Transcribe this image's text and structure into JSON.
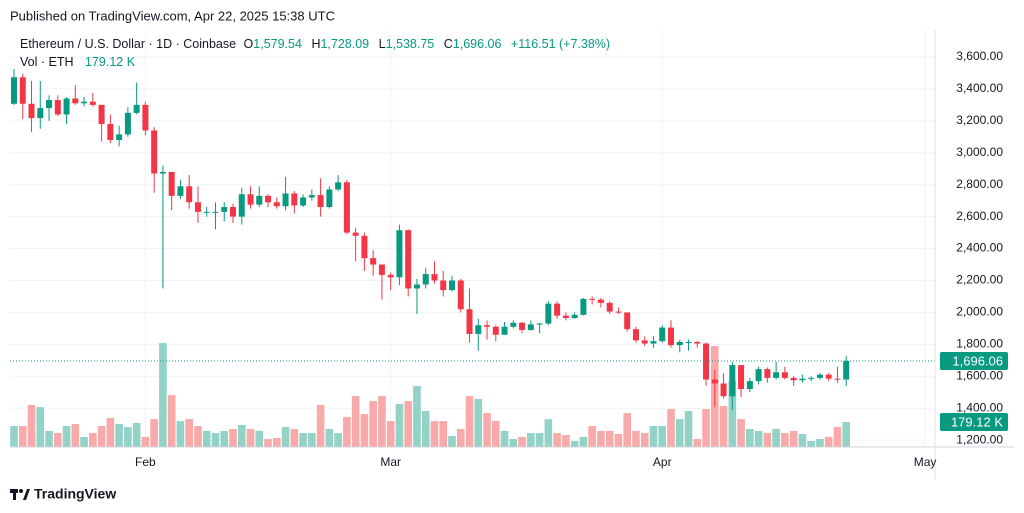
{
  "header": {
    "published": "Published on TradingView.com, Apr 22, 2025 15:38 UTC"
  },
  "footer": {
    "brand": "TradingView"
  },
  "chart_data": {
    "type": "candlestick",
    "categories": [
      null,
      null,
      null,
      null,
      null,
      null,
      null,
      null,
      null,
      null,
      null,
      null,
      null,
      null,
      null,
      "Feb",
      null,
      null,
      null,
      null,
      null,
      null,
      null,
      null,
      null,
      null,
      null,
      null,
      null,
      null,
      null,
      null,
      null,
      null,
      null,
      null,
      null,
      null,
      null,
      null,
      null,
      null,
      null,
      "Mar",
      null,
      null,
      null,
      null,
      null,
      null,
      null,
      null,
      null,
      null,
      null,
      null,
      null,
      null,
      null,
      null,
      null,
      null,
      null,
      null,
      null,
      null,
      null,
      null,
      null,
      null,
      null,
      null,
      null,
      null,
      "Apr",
      null,
      null,
      null,
      null,
      null,
      null,
      null,
      null,
      null,
      null,
      null,
      null,
      null,
      null,
      null,
      null,
      null,
      null,
      null,
      null,
      null,
      null,
      null,
      null,
      null,
      null,
      null,
      null,
      null,
      "May"
    ],
    "series": [
      {
        "name": "Ethereum / U.S. Dollar · 1D · Coinbase",
        "up_color": "#089981",
        "down_color": "#f23645",
        "open": [
          3307,
          3473,
          3307,
          3217,
          3280,
          3330,
          3240,
          3340,
          3310,
          3320,
          3300,
          3180,
          3080,
          3115,
          3250,
          3300,
          3140,
          2870,
          2880,
          2730,
          2790,
          2690,
          2630,
          2630,
          2630,
          2660,
          2600,
          2740,
          2675,
          2730,
          2690,
          2665,
          2745,
          2670,
          2720,
          2735,
          2660,
          2770,
          2815,
          2500,
          2480,
          2340,
          2300,
          2235,
          2220,
          2515,
          2150,
          2175,
          2240,
          2200,
          2140,
          2200,
          2020,
          1865,
          1920,
          1910,
          1860,
          1910,
          1935,
          1890,
          1925,
          1930,
          2055,
          1980,
          1965,
          1985,
          2085,
          2080,
          2060,
          2005,
          2000,
          1895,
          1825,
          1805,
          1820,
          1905,
          1795,
          1815,
          1815,
          1805,
          1580,
          1555,
          1475,
          1670,
          1520,
          1570,
          1645,
          1590,
          1625,
          1590,
          1575,
          1585,
          1590,
          1610,
          1585,
          1579.54,
          null,
          null,
          null,
          null,
          null,
          null,
          null,
          null,
          null
        ],
        "high": [
          3525,
          3495,
          3450,
          3450,
          3360,
          3360,
          3350,
          3425,
          3350,
          3375,
          3300,
          3240,
          3170,
          3285,
          3440,
          3320,
          3160,
          2920,
          2880,
          2830,
          2860,
          2790,
          2660,
          2690,
          2690,
          2680,
          2780,
          2790,
          2790,
          2740,
          2720,
          2850,
          2760,
          2740,
          2770,
          2840,
          2790,
          2860,
          2830,
          2530,
          2500,
          2390,
          2300,
          2250,
          2550,
          2520,
          2210,
          2280,
          2320,
          2260,
          2230,
          2210,
          2150,
          1960,
          1950,
          1920,
          1940,
          1950,
          1940,
          1950,
          1935,
          2070,
          2070,
          2000,
          2000,
          2090,
          2100,
          2090,
          2070,
          2030,
          2000,
          1910,
          1850,
          1850,
          1920,
          1950,
          1830,
          1830,
          1820,
          1810,
          1640,
          1620,
          1690,
          1670,
          1590,
          1660,
          1655,
          1690,
          1660,
          1600,
          1610,
          1600,
          1620,
          1620,
          1660,
          1728.09,
          null,
          null,
          null,
          null,
          null,
          null,
          null,
          null,
          null
        ],
        "low": [
          3300,
          3210,
          3130,
          3150,
          3200,
          3230,
          3180,
          3300,
          3290,
          3290,
          3070,
          3060,
          3040,
          3100,
          3240,
          3110,
          2750,
          2150,
          2640,
          2710,
          2650,
          2560,
          2600,
          2520,
          2570,
          2560,
          2550,
          2650,
          2660,
          2660,
          2650,
          2640,
          2620,
          2660,
          2700,
          2600,
          2650,
          2760,
          2490,
          2320,
          2260,
          2230,
          2080,
          2140,
          2170,
          2100,
          1990,
          2150,
          2180,
          2100,
          2130,
          2000,
          1810,
          1760,
          1830,
          1820,
          1860,
          1900,
          1870,
          1885,
          1870,
          1920,
          1960,
          1950,
          1960,
          1980,
          2050,
          2030,
          1990,
          1990,
          1880,
          1810,
          1790,
          1780,
          1810,
          1780,
          1750,
          1760,
          1780,
          1540,
          1410,
          1460,
          1390,
          1470,
          1500,
          1550,
          1560,
          1580,
          1580,
          1540,
          1560,
          1570,
          1580,
          1570,
          1560,
          1538.75,
          null,
          null,
          null,
          null,
          null,
          null,
          null,
          null,
          null
        ],
        "close": [
          3473,
          3307,
          3217,
          3280,
          3330,
          3240,
          3340,
          3310,
          3320,
          3300,
          3180,
          3080,
          3115,
          3250,
          3300,
          3140,
          2870,
          2880,
          2730,
          2790,
          2690,
          2630,
          2630,
          2630,
          2660,
          2600,
          2740,
          2675,
          2730,
          2690,
          2665,
          2745,
          2670,
          2720,
          2735,
          2660,
          2770,
          2815,
          2500,
          2480,
          2340,
          2300,
          2235,
          2220,
          2515,
          2150,
          2175,
          2240,
          2200,
          2140,
          2200,
          2020,
          1865,
          1920,
          1910,
          1860,
          1910,
          1935,
          1890,
          1925,
          1930,
          2055,
          1980,
          1965,
          1985,
          2085,
          2080,
          2060,
          2005,
          2000,
          1895,
          1825,
          1805,
          1820,
          1905,
          1795,
          1815,
          1815,
          1805,
          1580,
          1555,
          1475,
          1670,
          1520,
          1570,
          1645,
          1590,
          1625,
          1590,
          1575,
          1585,
          1590,
          1610,
          1585,
          1579.54,
          1696.06,
          null,
          null,
          null,
          null,
          null,
          null,
          null,
          null,
          null
        ]
      },
      {
        "name": "Vol · ETH",
        "axis": "y2",
        "up_color": "#92d2c7",
        "down_color": "#f8a9a9",
        "values": [
          150,
          150,
          301,
          286,
          115,
          100,
          150,
          165,
          72,
          100,
          150,
          208,
          165,
          143,
          172,
          72,
          200,
          745,
          372,
          186,
          200,
          150,
          115,
          100,
          115,
          129,
          158,
          129,
          115,
          57,
          64,
          143,
          129,
          100,
          100,
          301,
          129,
          100,
          215,
          365,
          236,
          329,
          365,
          186,
          308,
          329,
          437,
          258,
          186,
          186,
          79,
          129,
          365,
          344,
          243,
          186,
          115,
          57,
          72,
          100,
          100,
          200,
          100,
          86,
          43,
          72,
          150,
          115,
          115,
          93,
          243,
          115,
          100,
          150,
          150,
          272,
          200,
          258,
          57,
          272,
          723,
          294,
          473,
          200,
          129,
          115,
          100,
          129,
          100,
          115,
          93,
          43,
          57,
          72,
          143,
          179.12,
          null,
          null,
          null,
          null,
          null,
          null,
          null,
          null,
          null
        ]
      }
    ],
    "last_labels": [
      {
        "prefix": "O",
        "label": "1,579.54"
      },
      {
        "prefix": "H",
        "label": "1,728.09"
      },
      {
        "prefix": "L",
        "label": "1,538.75"
      },
      {
        "prefix": "C",
        "label": "1,696.06"
      }
    ],
    "change_label": "+116.51 (+7.38%)",
    "volume_label": "179.12 K",
    "ylim": [
      1157,
      3675
    ],
    "yticks": [
      {
        "value": 1200,
        "label": "1,200.00"
      },
      {
        "value": 1400,
        "label": "1,400.00"
      },
      {
        "value": 1600,
        "label": "1,600.00"
      },
      {
        "value": 1800,
        "label": "1,800.00"
      },
      {
        "value": 2000,
        "label": "2,000.00"
      },
      {
        "value": 2200,
        "label": "2,200.00"
      },
      {
        "value": 2400,
        "label": "2,400.00"
      },
      {
        "value": 2600,
        "label": "2,600.00"
      },
      {
        "value": 2800,
        "label": "2,800.00"
      },
      {
        "value": 3000,
        "label": "3,000.00"
      },
      {
        "value": 3200,
        "label": "3,200.00"
      },
      {
        "value": 3400,
        "label": "3,400.00"
      },
      {
        "value": 3600,
        "label": "3,600.00"
      }
    ],
    "y2lim": [
      0,
      2880
    ],
    "grid": true
  }
}
